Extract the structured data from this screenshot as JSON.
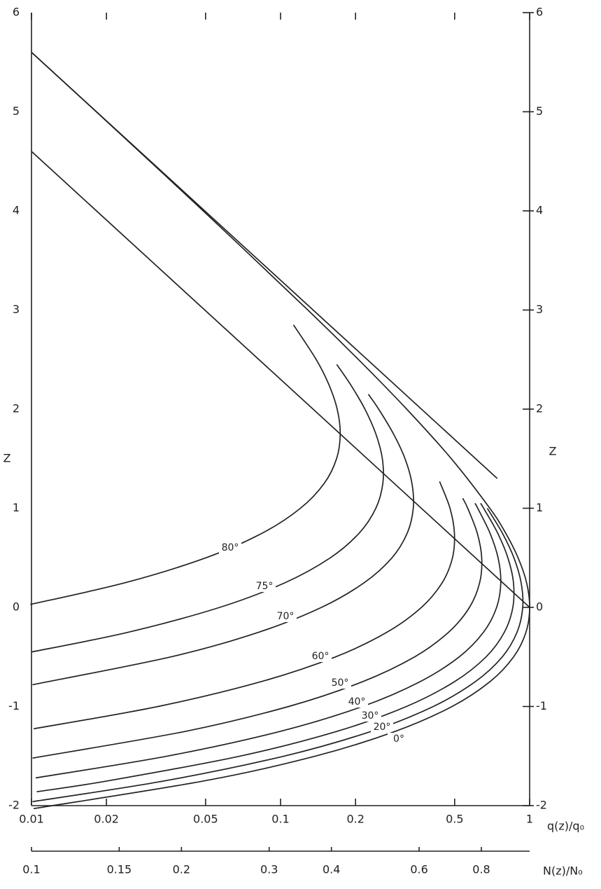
{
  "chart_data": {
    "type": "line",
    "x_log": true,
    "xlim": [
      0.01,
      1
    ],
    "xticks": [
      0.01,
      0.02,
      0.05,
      0.1,
      0.2,
      0.5,
      1
    ],
    "xlabel": "q(z)/q₀",
    "ylim": [
      -2,
      6
    ],
    "yticks": [
      -2,
      -1,
      0,
      1,
      2,
      3,
      4,
      5,
      6
    ],
    "ylabel": "Z",
    "x2lim": [
      0.1,
      1
    ],
    "x2ticks": [
      0.1,
      0.15,
      0.2,
      0.3,
      0.4,
      0.6,
      0.8
    ],
    "x2label": "N(z)/N₀",
    "color": "#222222",
    "series": [
      {
        "name": "80°",
        "x": [
          0.0099,
          0.0239,
          0.0501,
          0.0846,
          0.1202,
          0.1496,
          0.1678,
          0.1736,
          0.1688,
          0.1561,
          0.1391,
          0.1127
        ],
        "values": [
          0.03,
          0.25,
          0.5,
          0.75,
          1,
          1.25,
          1.5,
          1.75,
          2,
          2.25,
          2.5,
          2.85
        ]
      },
      {
        "name": "75°",
        "x": [
          0.01,
          0.0245,
          0.057,
          0.1045,
          0.1583,
          0.207,
          0.2413,
          0.2574,
          0.2562,
          0.2413,
          0.2181,
          0.1907,
          0.1681
        ],
        "values": [
          -0.45,
          -0.25,
          0,
          0.25,
          0.5,
          0.75,
          1,
          1.25,
          1.5,
          1.75,
          2,
          2.25,
          2.45
        ]
      },
      {
        "name": "70°",
        "x": [
          0.0101,
          0.0361,
          0.0818,
          0.146,
          0.217,
          0.28,
          0.3226,
          0.341,
          0.337,
          0.316,
          0.284,
          0.2477,
          0.2252
        ],
        "values": [
          -0.78,
          -0.5,
          -0.25,
          0,
          0.25,
          0.5,
          0.75,
          1,
          1.25,
          1.5,
          1.75,
          2,
          2.15
        ]
      },
      {
        "name": "60°",
        "x": [
          0.0102,
          0.0322,
          0.0834,
          0.1658,
          0.2677,
          0.3679,
          0.446,
          0.49,
          0.499,
          0.479,
          0.435
        ],
        "values": [
          -1.225,
          -1,
          -0.75,
          -0.5,
          -0.25,
          0,
          0.25,
          0.5,
          0.75,
          1,
          1.27
        ]
      },
      {
        "name": "50°",
        "x": [
          0.0101,
          0.0416,
          0.1077,
          0.2135,
          0.345,
          0.473,
          0.5735,
          0.63,
          0.642,
          0.616,
          0.564,
          0.539
        ],
        "values": [
          -1.52,
          -1.25,
          -1,
          -0.75,
          -0.5,
          -0.25,
          0,
          0.25,
          0.5,
          0.75,
          1,
          1.1
        ]
      },
      {
        "name": "40°",
        "x": [
          0.0104,
          0.0351,
          0.0999,
          0.213,
          0.363,
          0.521,
          0.653,
          0.737,
          0.766,
          0.747,
          0.693,
          0.619,
          0.603
        ],
        "values": [
          -1.72,
          -1.5,
          -1.25,
          -1,
          -0.75,
          -0.5,
          -0.25,
          0,
          0.25,
          0.5,
          0.75,
          1,
          1.05
        ]
      },
      {
        "name": "30°",
        "x": [
          0.0105,
          0.0203,
          0.0688,
          0.1685,
          0.32,
          0.499,
          0.668,
          0.792,
          0.856,
          0.861,
          0.818,
          0.744,
          0.654,
          0.635
        ],
        "values": [
          -1.86,
          -1.75,
          -1.5,
          -1.25,
          -1,
          -0.75,
          -0.5,
          -0.25,
          0,
          0.25,
          0.5,
          0.75,
          1,
          1.05
        ]
      },
      {
        "name": "20°",
        "x": [
          0.0101,
          0.0343,
          0.1034,
          0.2315,
          0.41,
          0.605,
          0.776,
          0.89,
          0.938,
          0.924,
          0.865,
          0.777,
          0.676
        ],
        "values": [
          -1.96,
          -1.75,
          -1.5,
          -1.25,
          -1,
          -0.75,
          -0.5,
          -0.25,
          0,
          0.25,
          0.5,
          0.75,
          1
        ]
      },
      {
        "name": "0°",
        "x": [
          0.0102,
          0.0495,
          0.138,
          0.289,
          0.488,
          0.693,
          0.862,
          0.967,
          1,
          0.972,
          0.899,
          0.801,
          0.692,
          0.485,
          0.321,
          0.2055,
          0.1287,
          0.0489,
          0.0182,
          0.01
        ],
        "values": [
          -2.03,
          -1.75,
          -1.5,
          -1.25,
          -1,
          -0.75,
          -0.5,
          -0.25,
          0,
          0.25,
          0.5,
          0.75,
          1,
          1.5,
          2,
          2.5,
          3,
          4,
          5,
          5.6
        ]
      },
      {
        "x": [
          0.01,
          0.741
        ],
        "values": [
          5.6,
          1.3
        ]
      },
      {
        "x": [
          0.01,
          1
        ],
        "values": [
          4.6,
          0
        ]
      }
    ]
  }
}
